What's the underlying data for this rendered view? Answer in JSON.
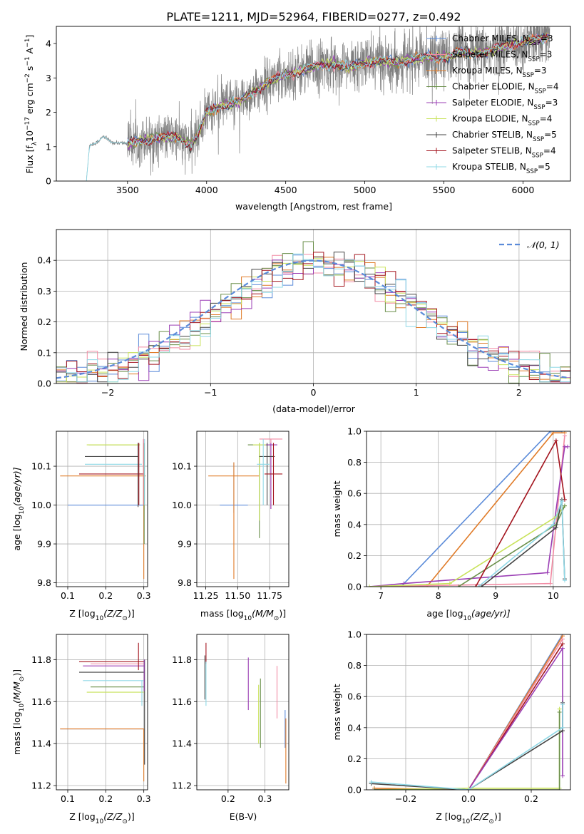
{
  "figure_title": "PLATE=1211, MJD=52964, FIBERID=0277, z=0.492",
  "colors": {
    "Chabrier MILES": "#5b8bd9",
    "Salpeter MILES": "#f28aa3",
    "Kroupa MILES": "#e07b28",
    "Chabrier ELODIE": "#6a8f4a",
    "Salpeter ELODIE": "#9b3fb5",
    "Kroupa ELODIE": "#c8e25a",
    "Chabrier STELIB": "#444444",
    "Salpeter STELIB": "#a3141e",
    "Kroupa STELIB": "#8fd8e6",
    "data": "#808080",
    "normal": "#5b8bd9"
  },
  "chart_data": [
    {
      "id": "spectrum",
      "type": "line",
      "title": "PLATE=1211, MJD=52964, FIBERID=0277, z=0.492",
      "xlabel": "wavelength [Angstrom, rest frame]",
      "ylabel_main": "Flux [f",
      "ylabel_sub": "λ",
      "ylabel_rest": "10",
      "ylabel_exp": "−17",
      "ylabel_tail": " erg cm",
      "ylabel_exp2": "−2",
      "ylabel_tail2": " s",
      "ylabel_exp3": "−1",
      "ylabel_tail3": " A",
      "ylabel_exp4": "−1",
      "ylabel_end": "]",
      "xlim": [
        3050,
        6300
      ],
      "ylim": [
        0,
        4.5
      ],
      "xticks": [
        3500,
        4000,
        4500,
        5000,
        5500,
        6000
      ],
      "yticks": [
        0,
        1,
        2,
        3,
        4
      ],
      "legend_position": "upper-right",
      "legend": [
        {
          "label": "Chabrier MILES, N",
          "sub": "SSP",
          "tail": "=3"
        },
        {
          "label": "Salpeter MILES, N",
          "sub": "SSP",
          "tail": "=3"
        },
        {
          "label": "Kroupa MILES, N",
          "sub": "SSP",
          "tail": "=3"
        },
        {
          "label": "Chabrier ELODIE, N",
          "sub": "SSP",
          "tail": "=4"
        },
        {
          "label": "Salpeter ELODIE, N",
          "sub": "SSP",
          "tail": "=3"
        },
        {
          "label": "Kroupa ELODIE, N",
          "sub": "SSP",
          "tail": "=4"
        },
        {
          "label": "Chabrier STELIB, N",
          "sub": "SSP",
          "tail": "=5"
        },
        {
          "label": "Salpeter STELIB, N",
          "sub": "SSP",
          "tail": "=4"
        },
        {
          "label": "Kroupa STELIB, N",
          "sub": "SSP",
          "tail": "=5"
        }
      ],
      "data_points_anchor": [
        [
          3050,
          0
        ],
        [
          3240,
          0
        ],
        [
          3260,
          1.05
        ],
        [
          3300,
          1.1
        ],
        [
          3350,
          1.3
        ],
        [
          3400,
          1.12
        ],
        [
          3500,
          1.1
        ],
        [
          3600,
          1.2
        ],
        [
          3700,
          1.25
        ],
        [
          3800,
          1.3
        ],
        [
          3900,
          1.05
        ],
        [
          3950,
          1.4
        ],
        [
          4000,
          2.0
        ],
        [
          4100,
          2.2
        ],
        [
          4200,
          2.3
        ],
        [
          4300,
          2.6
        ],
        [
          4400,
          2.9
        ],
        [
          4500,
          3.1
        ],
        [
          4600,
          3.2
        ],
        [
          4700,
          3.35
        ],
        [
          4800,
          3.4
        ],
        [
          4900,
          3.3
        ],
        [
          5000,
          3.45
        ],
        [
          5100,
          3.5
        ],
        [
          5200,
          3.45
        ],
        [
          5300,
          3.55
        ],
        [
          5400,
          3.6
        ],
        [
          5500,
          3.6
        ],
        [
          5600,
          3.75
        ],
        [
          5700,
          3.7
        ],
        [
          5800,
          3.8
        ],
        [
          5900,
          3.95
        ],
        [
          6000,
          4.05
        ],
        [
          6100,
          4.15
        ],
        [
          6170,
          4.2
        ]
      ]
    },
    {
      "id": "residuals",
      "type": "step",
      "xlabel": "(data-model)/error",
      "ylabel": "Normed distribution",
      "xlim": [
        -2.5,
        2.5
      ],
      "ylim": [
        0,
        0.5
      ],
      "xticks": [
        -2,
        -1,
        0,
        1,
        2
      ],
      "yticks": [
        0.0,
        0.1,
        0.2,
        0.3,
        0.4
      ],
      "grid": true,
      "legend_label": "𝒩(0, 1)",
      "legend_position": "upper-right",
      "bin_width": 0.1
    },
    {
      "id": "age_vs_Z",
      "type": "errorbar",
      "xlabel": "Z [log",
      "xlabel_sub": "10",
      "xlabel_tail": "(Z/Z",
      "xlabel_sub2": "⊙",
      "xlabel_end": ")]",
      "ylabel": "age  [log",
      "ylabel_sub": "10",
      "ylabel_tail": "(age/yr)]",
      "xlim": [
        0.07,
        0.31
      ],
      "ylim": [
        9.79,
        10.19
      ],
      "xticks": [
        0.1,
        0.2,
        0.3
      ],
      "yticks": [
        9.8,
        9.9,
        10.0,
        10.1
      ],
      "grid": true,
      "points": [
        {
          "model": "Chabrier MILES",
          "x": 0.2,
          "xerr": 0.1,
          "y": 10.0,
          "yerr": 0.0
        },
        {
          "model": "Salpeter MILES",
          "x": 0.3,
          "xerr": 0.0,
          "y": 10.17,
          "yerr": 0.02
        },
        {
          "model": "Kroupa MILES",
          "x": 0.2,
          "xerr": 0.12,
          "y": 10.075,
          "yerr": 0.0
        },
        {
          "model": "Chabrier ELODIE",
          "x": 0.22,
          "xerr": 0.065,
          "y": 10.155,
          "yerr": 0.0
        },
        {
          "model": "Salpeter ELODIE",
          "x": 0.295,
          "xerr": 0.0,
          "y": 10.155,
          "yerr": 0.0
        },
        {
          "model": "Kroupa ELODIE",
          "x": 0.22,
          "xerr": 0.07,
          "y": 10.155,
          "yerr": 0.0
        },
        {
          "model": "Chabrier STELIB",
          "x": 0.215,
          "xerr": 0.07,
          "y": 10.125,
          "yerr": 0.0
        },
        {
          "model": "Salpeter STELIB",
          "x": 0.215,
          "xerr": 0.085,
          "y": 10.08,
          "yerr": 0.0
        },
        {
          "model": "Kroupa STELIB",
          "x": 0.22,
          "xerr": 0.075,
          "y": 10.105,
          "yerr": 0.0
        }
      ],
      "vertical_bars": [
        {
          "model": "Chabrier STELIB",
          "x": 0.285,
          "y0": 9.995,
          "y1": 10.16
        },
        {
          "model": "Salpeter STELIB",
          "x": 0.287,
          "y0": 10.0,
          "y1": 10.16
        },
        {
          "model": "Kroupa MILES",
          "x": 0.3,
          "y0": 9.81,
          "y1": 10.07
        },
        {
          "model": "Chabrier ELODIE",
          "x": 0.301,
          "y0": 9.9,
          "y1": 10.16
        },
        {
          "model": "Salpeter MILES",
          "x": 0.299,
          "y0": 10.0,
          "y1": 10.17
        },
        {
          "model": "Kroupa STELIB",
          "x": 0.302,
          "y0": 10.0,
          "y1": 10.17
        }
      ]
    },
    {
      "id": "age_vs_mass",
      "type": "errorbar",
      "xlabel": "mass [log",
      "xlabel_sub": "10",
      "xlabel_tail": "(M/M",
      "xlabel_sub2": "⊙",
      "xlabel_end": ")]",
      "xlim": [
        11.18,
        11.9
      ],
      "ylim": [
        9.79,
        10.19
      ],
      "xticks": [
        11.25,
        11.5,
        11.75
      ],
      "yticks": [
        9.8,
        9.9,
        10.0,
        10.1
      ],
      "grid": true,
      "points": [
        {
          "model": "Chabrier MILES",
          "x": 11.47,
          "xerr": 0.11,
          "y": 10.0,
          "y0": 9.98,
          "y1": 10.11
        },
        {
          "model": "Kroupa MILES",
          "x": 11.47,
          "xerr": 0.2,
          "y": 10.075,
          "y0": 9.81,
          "y1": 10.11
        },
        {
          "model": "Salpeter MILES",
          "x": 11.76,
          "xerr": 0.09,
          "y": 10.17,
          "y0": 9.99,
          "y1": 10.17
        },
        {
          "model": "Chabrier ELODIE",
          "x": 11.67,
          "xerr": 0.09,
          "y": 10.155,
          "y0": 9.915,
          "y1": 10.16
        },
        {
          "model": "Salpeter ELODIE",
          "x": 11.76,
          "xerr": 0.05,
          "y": 10.155,
          "y0": 9.99,
          "y1": 10.16
        },
        {
          "model": "Kroupa ELODIE",
          "x": 11.67,
          "xerr": 0.05,
          "y": 10.155,
          "y0": 9.96,
          "y1": 10.16
        },
        {
          "model": "Chabrier STELIB",
          "x": 11.73,
          "xerr": 0.06,
          "y": 10.125,
          "y0": 10.0,
          "y1": 10.16
        },
        {
          "model": "Salpeter STELIB",
          "x": 11.78,
          "xerr": 0.07,
          "y": 10.08,
          "y0": 10.0,
          "y1": 10.16
        },
        {
          "model": "Kroupa STELIB",
          "x": 11.7,
          "xerr": 0.05,
          "y": 10.105,
          "y0": 10.0,
          "y1": 10.17
        }
      ]
    },
    {
      "id": "massweight_vs_age",
      "type": "line",
      "xlabel": "age  [log",
      "xlabel_sub": "10",
      "xlabel_tail": "(age/yr)]",
      "ylabel": "mass weight",
      "xlim": [
        6.75,
        10.3
      ],
      "ylim": [
        0,
        1
      ],
      "xticks": [
        7,
        8,
        9,
        10
      ],
      "yticks": [
        0.0,
        0.2,
        0.4,
        0.6,
        0.8,
        1.0
      ],
      "grid": true,
      "series": [
        {
          "model": "Chabrier MILES",
          "x": [
            7.35,
            9.95,
            10.15
          ],
          "y": [
            0.0,
            1.0,
            1.0
          ]
        },
        {
          "model": "Kroupa MILES",
          "x": [
            7.8,
            10.0,
            10.2
          ],
          "y": [
            0.0,
            0.99,
            0.99
          ]
        },
        {
          "model": "Salpeter MILES",
          "x": [
            6.8,
            9.95,
            10.2
          ],
          "y": [
            0.0,
            0.02,
            0.97
          ]
        },
        {
          "model": "Salpeter ELODIE",
          "x": [
            6.8,
            7.4,
            9.9,
            10.2,
            10.25
          ],
          "y": [
            0.0,
            0.02,
            0.09,
            0.9,
            0.9
          ]
        },
        {
          "model": "Kroupa ELODIE",
          "x": [
            6.8,
            8.2,
            10.05,
            10.2
          ],
          "y": [
            0.0,
            0.02,
            0.45,
            0.52
          ]
        },
        {
          "model": "Chabrier ELODIE",
          "x": [
            8.35,
            10.05,
            10.2
          ],
          "y": [
            0.0,
            0.4,
            0.52
          ]
        },
        {
          "model": "Salpeter STELIB",
          "x": [
            8.65,
            10.05,
            10.2
          ],
          "y": [
            0.0,
            0.94,
            0.56
          ]
        },
        {
          "model": "Chabrier STELIB",
          "x": [
            8.75,
            10.05,
            10.15,
            10.2
          ],
          "y": [
            0.0,
            0.38,
            0.56,
            0.05
          ]
        },
        {
          "model": "Kroupa STELIB",
          "x": [
            8.7,
            10.0,
            10.15,
            10.2
          ],
          "y": [
            0.0,
            0.4,
            0.55,
            0.04
          ]
        }
      ]
    },
    {
      "id": "mass_vs_Z",
      "type": "errorbar",
      "xlabel": "Z [log",
      "xlabel_sub": "10",
      "xlabel_tail": "(Z/Z",
      "xlabel_sub2": "⊙",
      "xlabel_end": ")]",
      "ylabel": "mass [log",
      "ylabel_sub": "10",
      "ylabel_tail": "(M/M",
      "ylabel_sub2": "⊙",
      "ylabel_end": ")]",
      "xlim": [
        0.07,
        0.31
      ],
      "ylim": [
        11.18,
        11.92
      ],
      "xticks": [
        0.1,
        0.2,
        0.3
      ],
      "yticks": [
        11.2,
        11.4,
        11.6,
        11.8
      ],
      "grid": true,
      "points": [
        {
          "model": "Salpeter STELIB",
          "x": 0.215,
          "xerr": 0.085,
          "y": 11.79
        },
        {
          "model": "Salpeter ELODIE",
          "x": 0.22,
          "xerr": 0.08,
          "y": 11.77
        },
        {
          "model": "Salpeter MILES",
          "x": 0.23,
          "xerr": 0.07,
          "y": 11.78
        },
        {
          "model": "Chabrier STELIB",
          "x": 0.215,
          "xerr": 0.085,
          "y": 11.74
        },
        {
          "model": "Kroupa STELIB",
          "x": 0.22,
          "xerr": 0.08,
          "y": 11.7
        },
        {
          "model": "Chabrier ELODIE",
          "x": 0.23,
          "xerr": 0.07,
          "y": 11.67
        },
        {
          "model": "Kroupa ELODIE",
          "x": 0.225,
          "xerr": 0.075,
          "y": 11.645
        },
        {
          "model": "Chabrier MILES",
          "x": 0.19,
          "xerr": 0.11,
          "y": 11.47
        },
        {
          "model": "Kroupa MILES",
          "x": 0.19,
          "xerr": 0.11,
          "y": 11.47
        }
      ],
      "vertical_bars": [
        {
          "model": "Salpeter STELIB",
          "x": 0.286,
          "y0": 11.75,
          "y1": 11.88
        },
        {
          "model": "Kroupa STELIB",
          "x": 0.295,
          "y0": 11.58,
          "y1": 11.7
        },
        {
          "model": "Kroupa MILES",
          "x": 0.3,
          "y0": 11.22,
          "y1": 11.47
        },
        {
          "model": "Chabrier STELIB",
          "x": 0.302,
          "y0": 11.3,
          "y1": 11.8
        },
        {
          "model": "Salpeter ELODIE",
          "x": 0.301,
          "y0": 11.65,
          "y1": 11.8
        }
      ]
    },
    {
      "id": "mass_vs_EBV",
      "type": "errorbar",
      "xlabel": "E(B-V)",
      "xlim": [
        0.115,
        0.365
      ],
      "ylim": [
        11.18,
        11.92
      ],
      "xticks": [
        0.2,
        0.3
      ],
      "yticks": [
        11.2,
        11.4,
        11.6,
        11.8
      ],
      "grid": true,
      "vertical_bars": [
        {
          "model": "Salpeter STELIB",
          "x": 0.14,
          "y0": 11.78,
          "y1": 11.88
        },
        {
          "model": "Chabrier STELIB",
          "x": 0.137,
          "y0": 11.61,
          "y1": 11.82
        },
        {
          "model": "Kroupa STELIB",
          "x": 0.14,
          "y0": 11.58,
          "y1": 11.79
        },
        {
          "model": "Salpeter ELODIE",
          "x": 0.255,
          "y0": 11.56,
          "y1": 11.81
        },
        {
          "model": "Kroupa ELODIE",
          "x": 0.283,
          "y0": 11.4,
          "y1": 11.68
        },
        {
          "model": "Chabrier ELODIE",
          "x": 0.288,
          "y0": 11.38,
          "y1": 11.71
        },
        {
          "model": "Salpeter MILES",
          "x": 0.333,
          "y0": 11.52,
          "y1": 11.77
        },
        {
          "model": "Chabrier MILES",
          "x": 0.355,
          "y0": 11.38,
          "y1": 11.56
        },
        {
          "model": "Kroupa MILES",
          "x": 0.357,
          "y0": 11.21,
          "y1": 11.52
        }
      ]
    },
    {
      "id": "massweight_vs_Z",
      "type": "line",
      "xlabel": "Z [log",
      "xlabel_sub": "10",
      "xlabel_tail": "(Z/Z",
      "xlabel_sub2": "⊙",
      "xlabel_end": ")]",
      "ylabel": "mass weight",
      "xlim": [
        -0.325,
        0.325
      ],
      "ylim": [
        0,
        1
      ],
      "xticks": [
        -0.2,
        0.0,
        0.2
      ],
      "yticks": [
        0.0,
        0.2,
        0.4,
        0.6,
        0.8,
        1.0
      ],
      "grid": true,
      "series": [
        {
          "model": "Chabrier MILES",
          "x": [
            -0.3,
            0.0,
            0.3
          ],
          "y": [
            0.0,
            0.0,
            1.0
          ]
        },
        {
          "model": "Kroupa MILES",
          "x": [
            -0.3,
            0.0,
            0.3
          ],
          "y": [
            0.01,
            0.0,
            0.99
          ]
        },
        {
          "model": "Salpeter MILES",
          "x": [
            -0.3,
            0.0,
            0.3
          ],
          "y": [
            0.0,
            0.0,
            0.97
          ]
        },
        {
          "model": "Salpeter STELIB",
          "x": [
            -0.3,
            0.0,
            0.3
          ],
          "y": [
            0.0,
            0.0,
            0.94
          ]
        },
        {
          "model": "Salpeter ELODIE",
          "x": [
            -0.3,
            0.0,
            0.3,
            0.3
          ],
          "y": [
            0.0,
            0.0,
            0.91,
            0.09
          ]
        },
        {
          "model": "Kroupa ELODIE",
          "x": [
            -0.3,
            0.0,
            0.29,
            0.29
          ],
          "y": [
            0.0,
            0.01,
            0.01,
            0.52
          ]
        },
        {
          "model": "Chabrier ELODIE",
          "x": [
            -0.3,
            0.0,
            0.29,
            0.29
          ],
          "y": [
            0.0,
            0.0,
            0.0,
            0.5
          ]
        },
        {
          "model": "Chabrier STELIB",
          "x": [
            -0.31,
            0.0,
            0.3,
            0.3
          ],
          "y": [
            0.04,
            0.0,
            0.38,
            0.56
          ]
        },
        {
          "model": "Kroupa STELIB",
          "x": [
            -0.31,
            0.0,
            0.3,
            0.3
          ],
          "y": [
            0.05,
            0.0,
            0.4,
            0.55
          ]
        }
      ]
    }
  ]
}
